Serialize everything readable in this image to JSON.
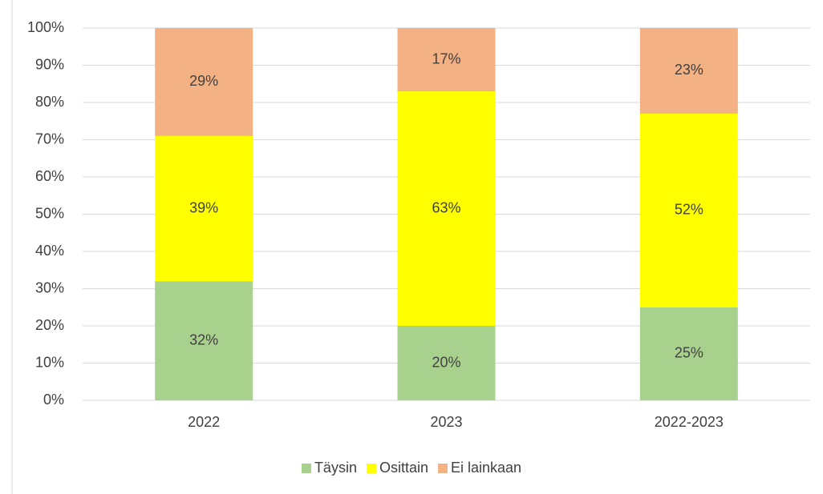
{
  "chart_data": {
    "type": "stacked_bar",
    "categories": [
      "2022",
      "2023",
      "2022-2023"
    ],
    "series": [
      {
        "name": "Täysin",
        "color": "#a9d18e",
        "values": [
          32,
          20,
          25
        ],
        "value_labels": [
          "32%",
          "20%",
          "25%"
        ]
      },
      {
        "name": "Osittain",
        "color": "#ffff00",
        "values": [
          39,
          63,
          52
        ],
        "value_labels": [
          "39%",
          "63%",
          "52%"
        ]
      },
      {
        "name": "Ei lainkaan",
        "color": "#f4b183",
        "values": [
          29,
          17,
          23
        ],
        "value_labels": [
          "29%",
          "17%",
          "23%"
        ]
      }
    ],
    "ylim": [
      0,
      100
    ],
    "yticks": [
      {
        "value": 0,
        "label": "0%"
      },
      {
        "value": 10,
        "label": "10%"
      },
      {
        "value": 20,
        "label": "20%"
      },
      {
        "value": 30,
        "label": "30%"
      },
      {
        "value": 40,
        "label": "40%"
      },
      {
        "value": 50,
        "label": "50%"
      },
      {
        "value": 60,
        "label": "60%"
      },
      {
        "value": 70,
        "label": "70%"
      },
      {
        "value": 80,
        "label": "80%"
      },
      {
        "value": 90,
        "label": "90%"
      },
      {
        "value": 100,
        "label": "100%"
      }
    ],
    "grid": true,
    "legend": "bottom"
  }
}
